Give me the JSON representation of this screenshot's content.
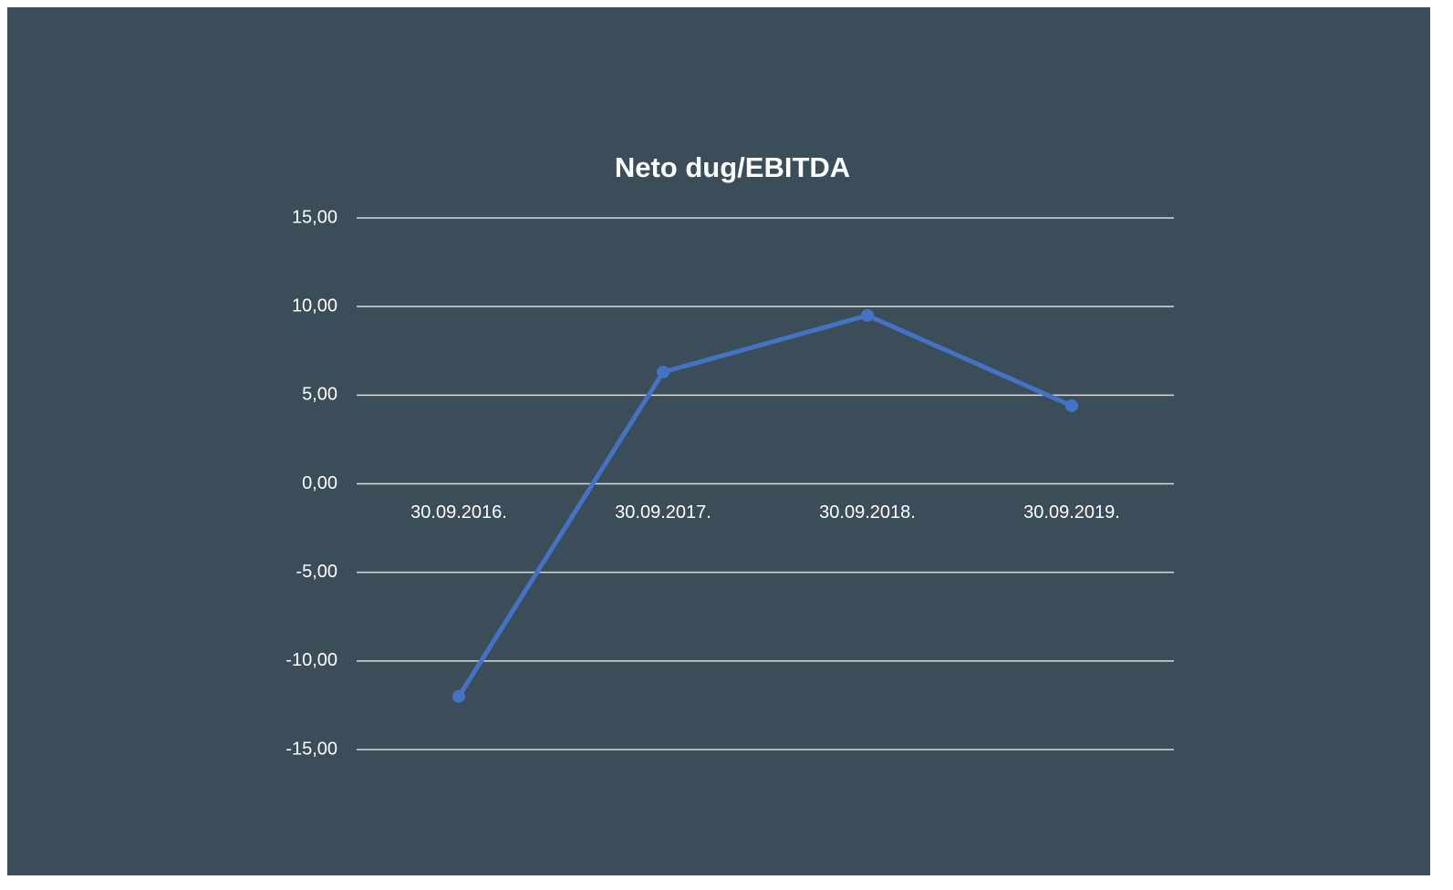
{
  "chart_data": {
    "type": "line",
    "title": "Neto dug/EBITDA",
    "categories": [
      "30.09.2016.",
      "30.09.2017.",
      "30.09.2018.",
      "30.09.2019."
    ],
    "series": [
      {
        "name": "Neto dug/EBITDA",
        "color": "#4472c4",
        "values": [
          -12.0,
          6.3,
          9.5,
          4.4
        ]
      }
    ],
    "ylim": [
      -15,
      15
    ],
    "yticks": [
      {
        "value": -15,
        "label": "-15,00"
      },
      {
        "value": -10,
        "label": "-10,00"
      },
      {
        "value": -5,
        "label": "-5,00"
      },
      {
        "value": 0,
        "label": "0,00"
      },
      {
        "value": 5,
        "label": "5,00"
      },
      {
        "value": 10,
        "label": "10,00"
      },
      {
        "value": 15,
        "label": "15,00"
      }
    ],
    "grid": true
  }
}
